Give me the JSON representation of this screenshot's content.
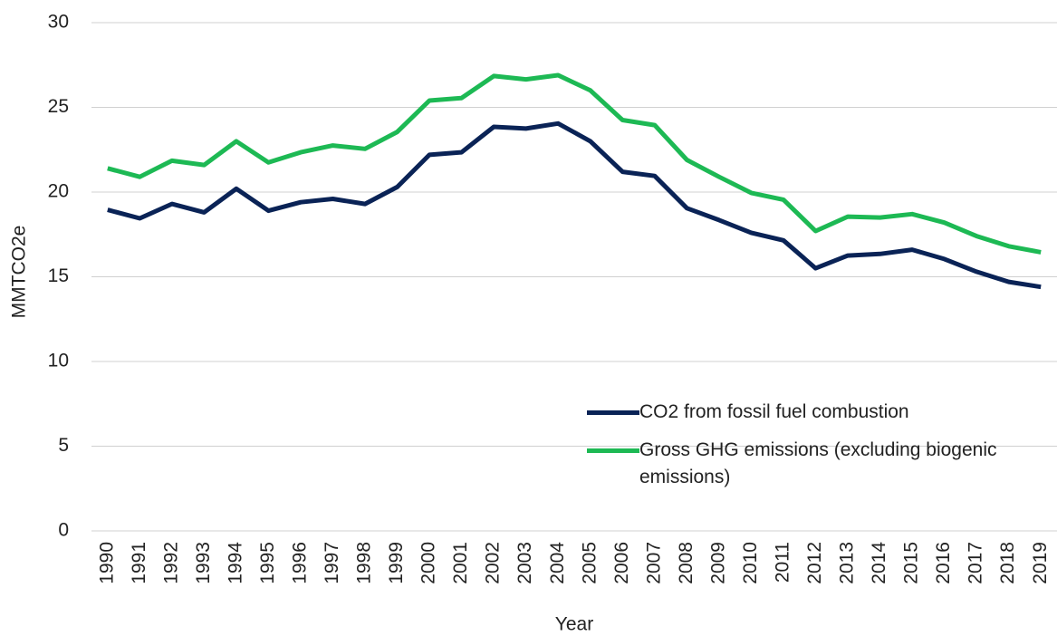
{
  "chart_data": {
    "type": "line",
    "y_label": "MMTCO2e",
    "x_label": "Year",
    "categories": [
      "1990",
      "1991",
      "1992",
      "1993",
      "1994",
      "1995",
      "1996",
      "1997",
      "1998",
      "1999",
      "2000",
      "2001",
      "2002",
      "2003",
      "2004",
      "2005",
      "2006",
      "2007",
      "2008",
      "2009",
      "2010",
      "2011",
      "2012",
      "2013",
      "2014",
      "2015",
      "2016",
      "2017",
      "2018",
      "2019"
    ],
    "series": [
      {
        "name": "CO2 from fossil fuel combustion",
        "color": "#0a2356",
        "values": [
          18.95,
          18.45,
          19.3,
          18.8,
          20.2,
          18.9,
          19.4,
          19.6,
          19.3,
          20.3,
          22.2,
          22.35,
          23.85,
          23.75,
          24.05,
          23.0,
          21.2,
          20.95,
          19.05,
          18.35,
          17.6,
          17.15,
          15.5,
          16.25,
          16.35,
          16.6,
          16.05,
          15.3,
          14.7,
          14.4
        ]
      },
      {
        "name": "Gross GHG emissions (excluding biogenic emissions)",
        "color": "#1db954",
        "values": [
          21.4,
          20.9,
          21.85,
          21.6,
          23.0,
          21.75,
          22.35,
          22.75,
          22.55,
          23.55,
          25.4,
          25.55,
          26.85,
          26.65,
          26.9,
          26.0,
          24.25,
          23.95,
          21.9,
          20.9,
          19.95,
          19.55,
          17.7,
          18.55,
          18.5,
          18.7,
          18.2,
          17.4,
          16.8,
          16.45
        ]
      }
    ],
    "ylim": [
      0,
      30
    ],
    "yticks": [
      0,
      5,
      10,
      15,
      20,
      25,
      30
    ],
    "grid": true,
    "legend": "lower-right"
  }
}
